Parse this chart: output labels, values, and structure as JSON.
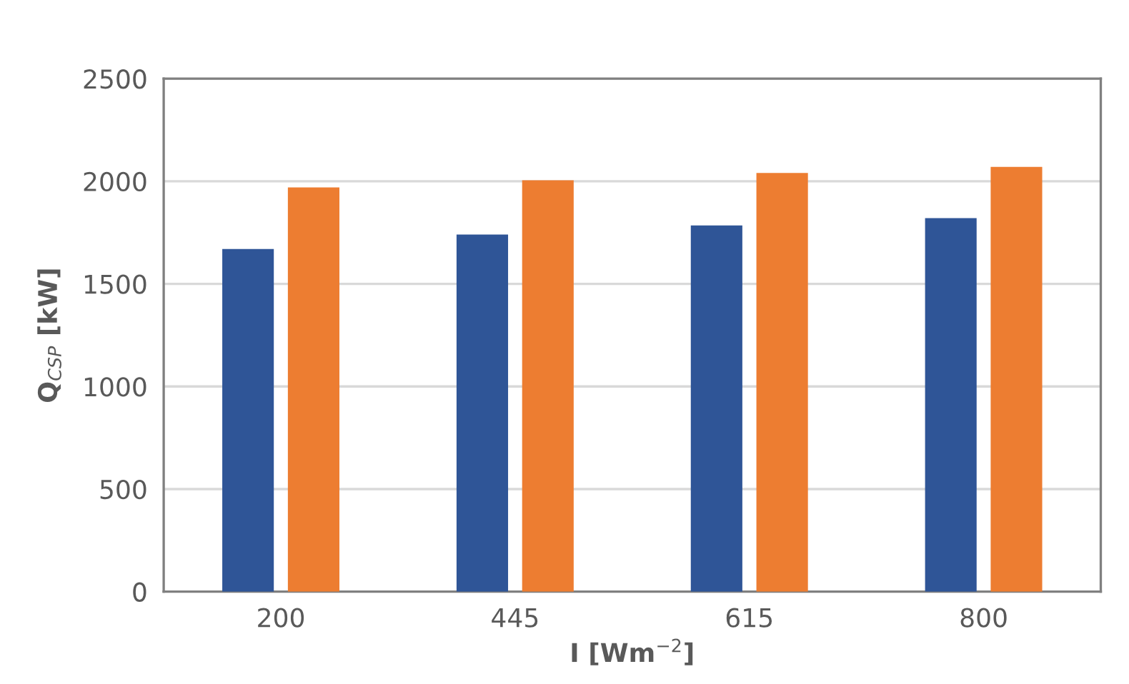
{
  "chart_data": {
    "type": "bar",
    "xlabel": "I [Wm$^{−2}$]",
    "ylabel": "Q$_{CSP}$ [kW]",
    "categories": [
      "200",
      "445",
      "615",
      "800"
    ],
    "series": [
      {
        "color": "#2f5597",
        "values": [
          1670,
          1740,
          1785,
          1820
        ]
      },
      {
        "color": "#ed7d31",
        "values": [
          1970,
          2005,
          2040,
          2070
        ]
      }
    ],
    "ylim": [
      0,
      2500
    ],
    "yticks": [
      0,
      500,
      1000,
      1500,
      2000,
      2500
    ],
    "grid": "y"
  }
}
